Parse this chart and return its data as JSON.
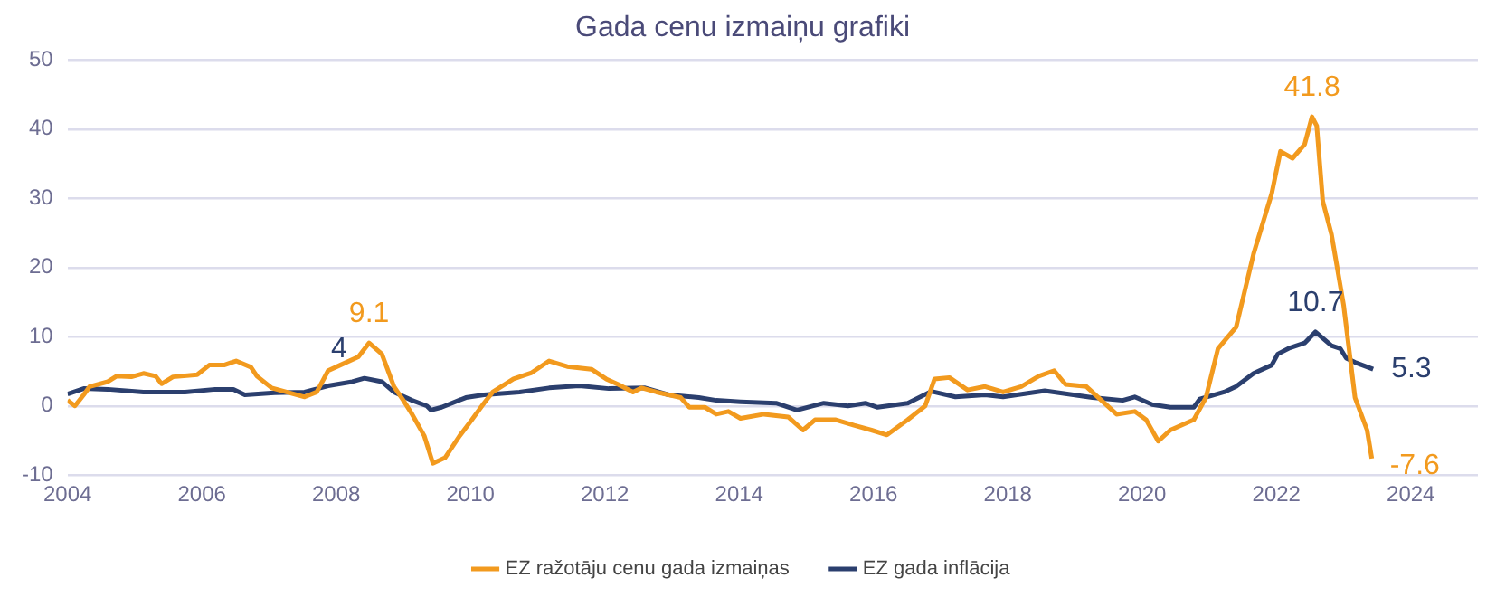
{
  "chart_data": {
    "type": "line",
    "title": "Gada cenu izmaiņu grafiki",
    "xlim": [
      2004,
      2025
    ],
    "xticks": [
      2004,
      2006,
      2008,
      2010,
      2012,
      2014,
      2016,
      2018,
      2020,
      2022,
      2024
    ],
    "ylim": [
      -10,
      50
    ],
    "yticks": [
      -10,
      0,
      10,
      20,
      30,
      40,
      50
    ],
    "grid": "y",
    "legend": "bottom",
    "marker": "none",
    "series": [
      {
        "name": "EZ ražotāju cenu gada izmaiņas",
        "color": "#f29a1e",
        "x": [
          2004.0,
          2004.11,
          2004.24,
          2004.33,
          2004.6,
          2004.73,
          2004.95,
          2005.13,
          2005.31,
          2005.4,
          2005.57,
          2005.93,
          2006.11,
          2006.33,
          2006.51,
          2006.73,
          2006.82,
          2007.04,
          2007.26,
          2007.53,
          2007.71,
          2007.88,
          2008.06,
          2008.33,
          2008.49,
          2008.68,
          2008.86,
          2009.0,
          2009.13,
          2009.31,
          2009.44,
          2009.62,
          2009.84,
          2010.02,
          2010.2,
          2010.33,
          2010.64,
          2010.91,
          2011.17,
          2011.44,
          2011.8,
          2012.02,
          2012.2,
          2012.42,
          2012.55,
          2012.77,
          2013.13,
          2013.26,
          2013.49,
          2013.66,
          2013.84,
          2014.02,
          2014.37,
          2014.73,
          2014.95,
          2015.13,
          2015.44,
          2015.71,
          2015.97,
          2016.2,
          2016.51,
          2016.77,
          2016.91,
          2017.13,
          2017.4,
          2017.66,
          2017.93,
          2018.2,
          2018.46,
          2018.69,
          2018.86,
          2019.17,
          2019.35,
          2019.62,
          2019.89,
          2020.06,
          2020.24,
          2020.42,
          2020.77,
          2020.95,
          2021.13,
          2021.4,
          2021.66,
          2021.93,
          2022.06,
          2022.24,
          2022.42,
          2022.53,
          2022.6,
          2022.69,
          2022.82,
          2023.0,
          2023.17,
          2023.35,
          2023.42
        ],
        "values": [
          0.8,
          0,
          1.6,
          2.8,
          3.5,
          4.3,
          4.2,
          4.7,
          4.3,
          3.2,
          4.2,
          4.5,
          5.9,
          5.9,
          6.5,
          5.6,
          4.3,
          2.6,
          2.0,
          1.3,
          2.0,
          5.1,
          5.9,
          7.1,
          9.1,
          7.5,
          2.8,
          0.8,
          -1.2,
          -4.3,
          -8.3,
          -7.5,
          -4.3,
          -2.0,
          0.4,
          2.0,
          3.9,
          4.8,
          6.5,
          5.7,
          5.3,
          3.9,
          3.1,
          2.0,
          2.6,
          2.0,
          1.2,
          -0.2,
          -0.2,
          -1.2,
          -0.8,
          -1.8,
          -1.2,
          -1.6,
          -3.5,
          -2.0,
          -2.0,
          -2.8,
          -3.5,
          -4.2,
          -2.0,
          0,
          3.9,
          4.1,
          2.3,
          2.8,
          2.0,
          2.8,
          4.3,
          5.1,
          3.1,
          2.8,
          1.2,
          -1.2,
          -0.8,
          -2.0,
          -5.1,
          -3.5,
          -2.0,
          1.2,
          8.3,
          11.4,
          22.0,
          30.7,
          36.8,
          35.8,
          37.8,
          41.8,
          40.5,
          29.6,
          24.8,
          14.6,
          1.2,
          -3.5,
          -7.6
        ],
        "value_labels": [
          null,
          null,
          null,
          null,
          null,
          null,
          null,
          null,
          null,
          null,
          null,
          null,
          null,
          null,
          null,
          null,
          null,
          null,
          null,
          null,
          null,
          null,
          null,
          null,
          "9.1",
          null,
          null,
          null,
          null,
          null,
          null,
          null,
          null,
          null,
          null,
          null,
          null,
          null,
          null,
          null,
          null,
          null,
          null,
          null,
          null,
          null,
          null,
          null,
          null,
          null,
          null,
          null,
          null,
          null,
          null,
          null,
          null,
          null,
          null,
          null,
          null,
          null,
          null,
          null,
          null,
          null,
          null,
          null,
          null,
          null,
          null,
          null,
          null,
          null,
          null,
          null,
          null,
          null,
          null,
          null,
          null,
          null,
          null,
          null,
          null,
          null,
          null,
          "41.8",
          null,
          null,
          null,
          null,
          null,
          null,
          "-7.6"
        ]
      },
      {
        "name": "EZ gada inflācija",
        "color": "#2b3f6e",
        "x": [
          2004.0,
          2004.24,
          2004.6,
          2005.13,
          2005.75,
          2006.2,
          2006.47,
          2006.64,
          2007.08,
          2007.53,
          2007.88,
          2008.24,
          2008.42,
          2008.68,
          2008.86,
          2009.13,
          2009.35,
          2009.41,
          2009.57,
          2009.93,
          2010.2,
          2010.73,
          2011.17,
          2011.62,
          2012.06,
          2012.6,
          2012.95,
          2013.4,
          2013.66,
          2014.02,
          2014.55,
          2014.86,
          2015.26,
          2015.62,
          2015.88,
          2016.06,
          2016.51,
          2016.86,
          2017.22,
          2017.66,
          2017.93,
          2018.55,
          2019.26,
          2019.71,
          2019.89,
          2020.15,
          2020.42,
          2020.77,
          2020.86,
          2021.22,
          2021.4,
          2021.66,
          2021.93,
          2022.02,
          2022.2,
          2022.42,
          2022.58,
          2022.82,
          2022.95,
          2023.04,
          2023.17,
          2023.44
        ],
        "values": [
          1.7,
          2.5,
          2.4,
          2.0,
          2.0,
          2.4,
          2.4,
          1.6,
          1.9,
          2.0,
          2.9,
          3.5,
          4.0,
          3.5,
          2.0,
          0.8,
          0,
          -0.6,
          -0.2,
          1.2,
          1.6,
          2.0,
          2.6,
          2.9,
          2.5,
          2.6,
          1.6,
          1.2,
          0.8,
          0.6,
          0.4,
          -0.6,
          0.4,
          0,
          0.4,
          -0.2,
          0.4,
          2.1,
          1.3,
          1.6,
          1.3,
          2.2,
          1.2,
          0.8,
          1.3,
          0.2,
          -0.2,
          -0.2,
          1.0,
          2.0,
          2.8,
          4.7,
          5.9,
          7.5,
          8.4,
          9.1,
          10.7,
          8.7,
          8.3,
          6.9,
          6.3,
          5.3
        ],
        "value_labels": [
          null,
          null,
          null,
          null,
          null,
          null,
          null,
          null,
          null,
          null,
          null,
          null,
          "4",
          null,
          null,
          null,
          null,
          null,
          null,
          null,
          null,
          null,
          null,
          null,
          null,
          null,
          null,
          null,
          null,
          null,
          null,
          null,
          null,
          null,
          null,
          null,
          null,
          null,
          null,
          null,
          null,
          null,
          null,
          null,
          null,
          null,
          null,
          null,
          null,
          null,
          null,
          null,
          null,
          null,
          null,
          null,
          "10.7",
          null,
          null,
          null,
          null,
          "5.3"
        ]
      }
    ]
  }
}
